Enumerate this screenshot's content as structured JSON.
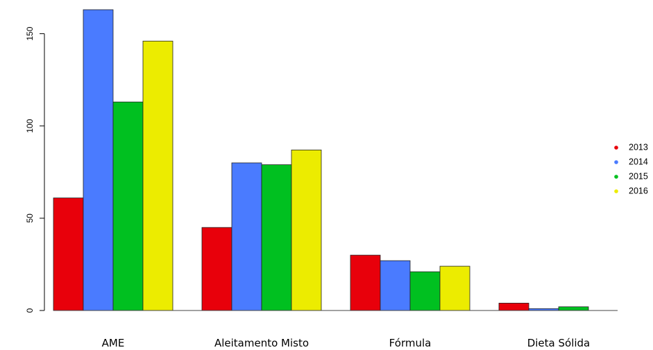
{
  "chart_data": {
    "type": "bar",
    "categories": [
      "AME",
      "Aleitamento Misto",
      "Fórmula",
      "Dieta Sólida"
    ],
    "series": [
      {
        "name": "2013",
        "color": "#e8000b",
        "values": [
          61,
          45,
          30,
          4
        ]
      },
      {
        "name": "2014",
        "color": "#4a7bff",
        "values": [
          163,
          80,
          27,
          1
        ]
      },
      {
        "name": "2015",
        "color": "#00c020",
        "values": [
          113,
          79,
          21,
          2
        ]
      },
      {
        "name": "2016",
        "color": "#ecec00",
        "values": [
          146,
          87,
          24,
          0
        ]
      }
    ],
    "yticks": [
      "0",
      "50",
      "100",
      "150"
    ],
    "ylim": [
      0,
      163
    ],
    "legend_position": "right",
    "grid": false
  }
}
